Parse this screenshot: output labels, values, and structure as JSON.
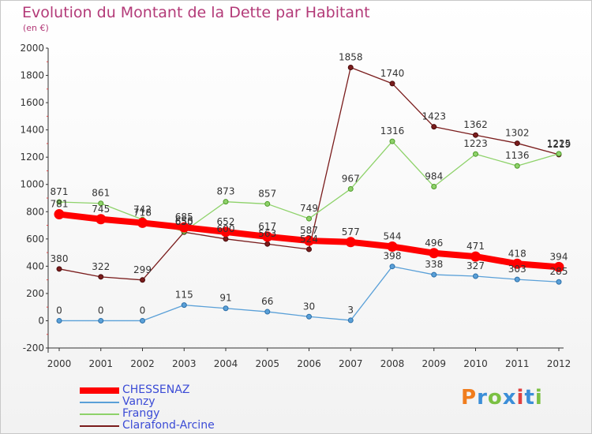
{
  "header": {
    "title": "Evolution du Montant de la Dette par Habitant",
    "subtitle": "(en €)"
  },
  "logo": {
    "text": "Proxiti",
    "colors": [
      "#f07d1e",
      "#3b8ed8",
      "#7bc043",
      "#3b8ed8",
      "#e04040",
      "#3b8ed8",
      "#7bc043"
    ]
  },
  "chart_data": {
    "type": "line",
    "title": "Evolution du Montant de la Dette par Habitant",
    "subtitle": "(en €)",
    "xlabel": "",
    "ylabel": "",
    "categories": [
      "2000",
      "2001",
      "2002",
      "2003",
      "2004",
      "2005",
      "2006",
      "2007",
      "2008",
      "2009",
      "2010",
      "2011",
      "2012"
    ],
    "ylim": [
      -200,
      2000
    ],
    "yticks": [
      -200,
      0,
      200,
      400,
      600,
      800,
      1000,
      1200,
      1400,
      1600,
      1800,
      2000
    ],
    "grid": false,
    "legend_position": "bottom-left",
    "series": [
      {
        "name": "CHESSENAZ",
        "color": "#ff0000",
        "values": [
          781,
          745,
          718,
          685,
          652,
          617,
          587,
          577,
          544,
          496,
          471,
          418,
          394
        ]
      },
      {
        "name": "Vanzy",
        "color": "#5aa0d8",
        "values": [
          0,
          0,
          0,
          115,
          91,
          66,
          30,
          3,
          398,
          338,
          327,
          303,
          285
        ]
      },
      {
        "name": "Frangy",
        "color": "#8ed26a",
        "values": [
          871,
          861,
          742,
          655,
          873,
          857,
          749,
          967,
          1316,
          984,
          1223,
          1136,
          1225
        ]
      },
      {
        "name": "Clarafond-Arcine",
        "color": "#7a1c1c",
        "values": [
          380,
          322,
          299,
          650,
          600,
          563,
          524,
          1858,
          1740,
          1423,
          1362,
          1302,
          1219
        ]
      }
    ]
  }
}
